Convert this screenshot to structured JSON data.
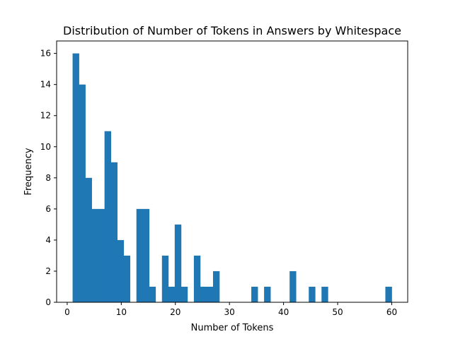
{
  "chart_data": {
    "type": "bar",
    "title": "Distribution of Number of Tokens in Answers by Whitespace",
    "xlabel": "Number of Tokens",
    "ylabel": "Frequency",
    "xlim": [
      -1.95,
      62.95
    ],
    "ylim": [
      0,
      16.8
    ],
    "xticks": [
      0,
      10,
      20,
      30,
      40,
      50,
      60
    ],
    "yticks": [
      0,
      2,
      4,
      6,
      8,
      10,
      12,
      14,
      16
    ],
    "bin_start": 1,
    "bin_width": 1.18,
    "values": [
      16,
      14,
      8,
      6,
      6,
      11,
      9,
      4,
      3,
      0,
      6,
      6,
      1,
      0,
      3,
      1,
      5,
      1,
      0,
      3,
      1,
      1,
      2,
      0,
      0,
      0,
      0,
      0,
      1,
      0,
      1,
      0,
      0,
      0,
      2,
      0,
      0,
      1,
      0,
      1,
      0,
      0,
      0,
      0,
      0,
      0,
      0,
      0,
      0,
      1
    ],
    "grid": false,
    "bar_color": "#1f77b4"
  }
}
